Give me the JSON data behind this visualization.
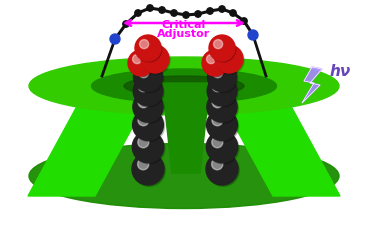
{
  "title": "",
  "bg_color": "#ffffff",
  "green_dark": "#1a8c00",
  "green_bright": "#22dd00",
  "green_mid": "#33cc00",
  "black_sphere": "#222222",
  "red_sphere": "#cc1111",
  "blue_node": "#2244cc",
  "arrow_color": "#ff00ff",
  "lightning_color": "#aa88ff",
  "text_critical": "Critical",
  "text_adjustor": "Adjustor",
  "text_hv": "hν",
  "label_fontsize": 9,
  "hv_fontsize": 10
}
